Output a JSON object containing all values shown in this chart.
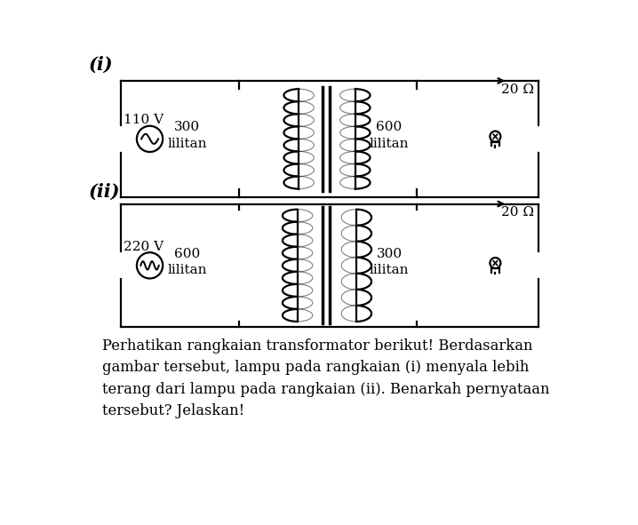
{
  "title_i": "(i)",
  "title_ii": "(ii)",
  "voltage_i": "110 V",
  "voltage_ii": "220 V",
  "primary_turns_i": "300\nlilitan",
  "secondary_turns_i": "600\nlilitan",
  "primary_turns_ii": "600\nlilitan",
  "secondary_turns_ii": "300\nlilitan",
  "resistance_i": "20 Ω",
  "resistance_ii": "20 Ω",
  "description": "Perhatikan rangkaian transformator berikut! Berdasarkan gambar tersebut, lampu pada rangkaian (i) menyala lebih\nterang dari lampu pada rangkaian (ii). Benarkah pernyataan tersebut? Jelaskan!",
  "bg_color": "#ffffff",
  "line_color": "#000000",
  "text_color": "#000000"
}
